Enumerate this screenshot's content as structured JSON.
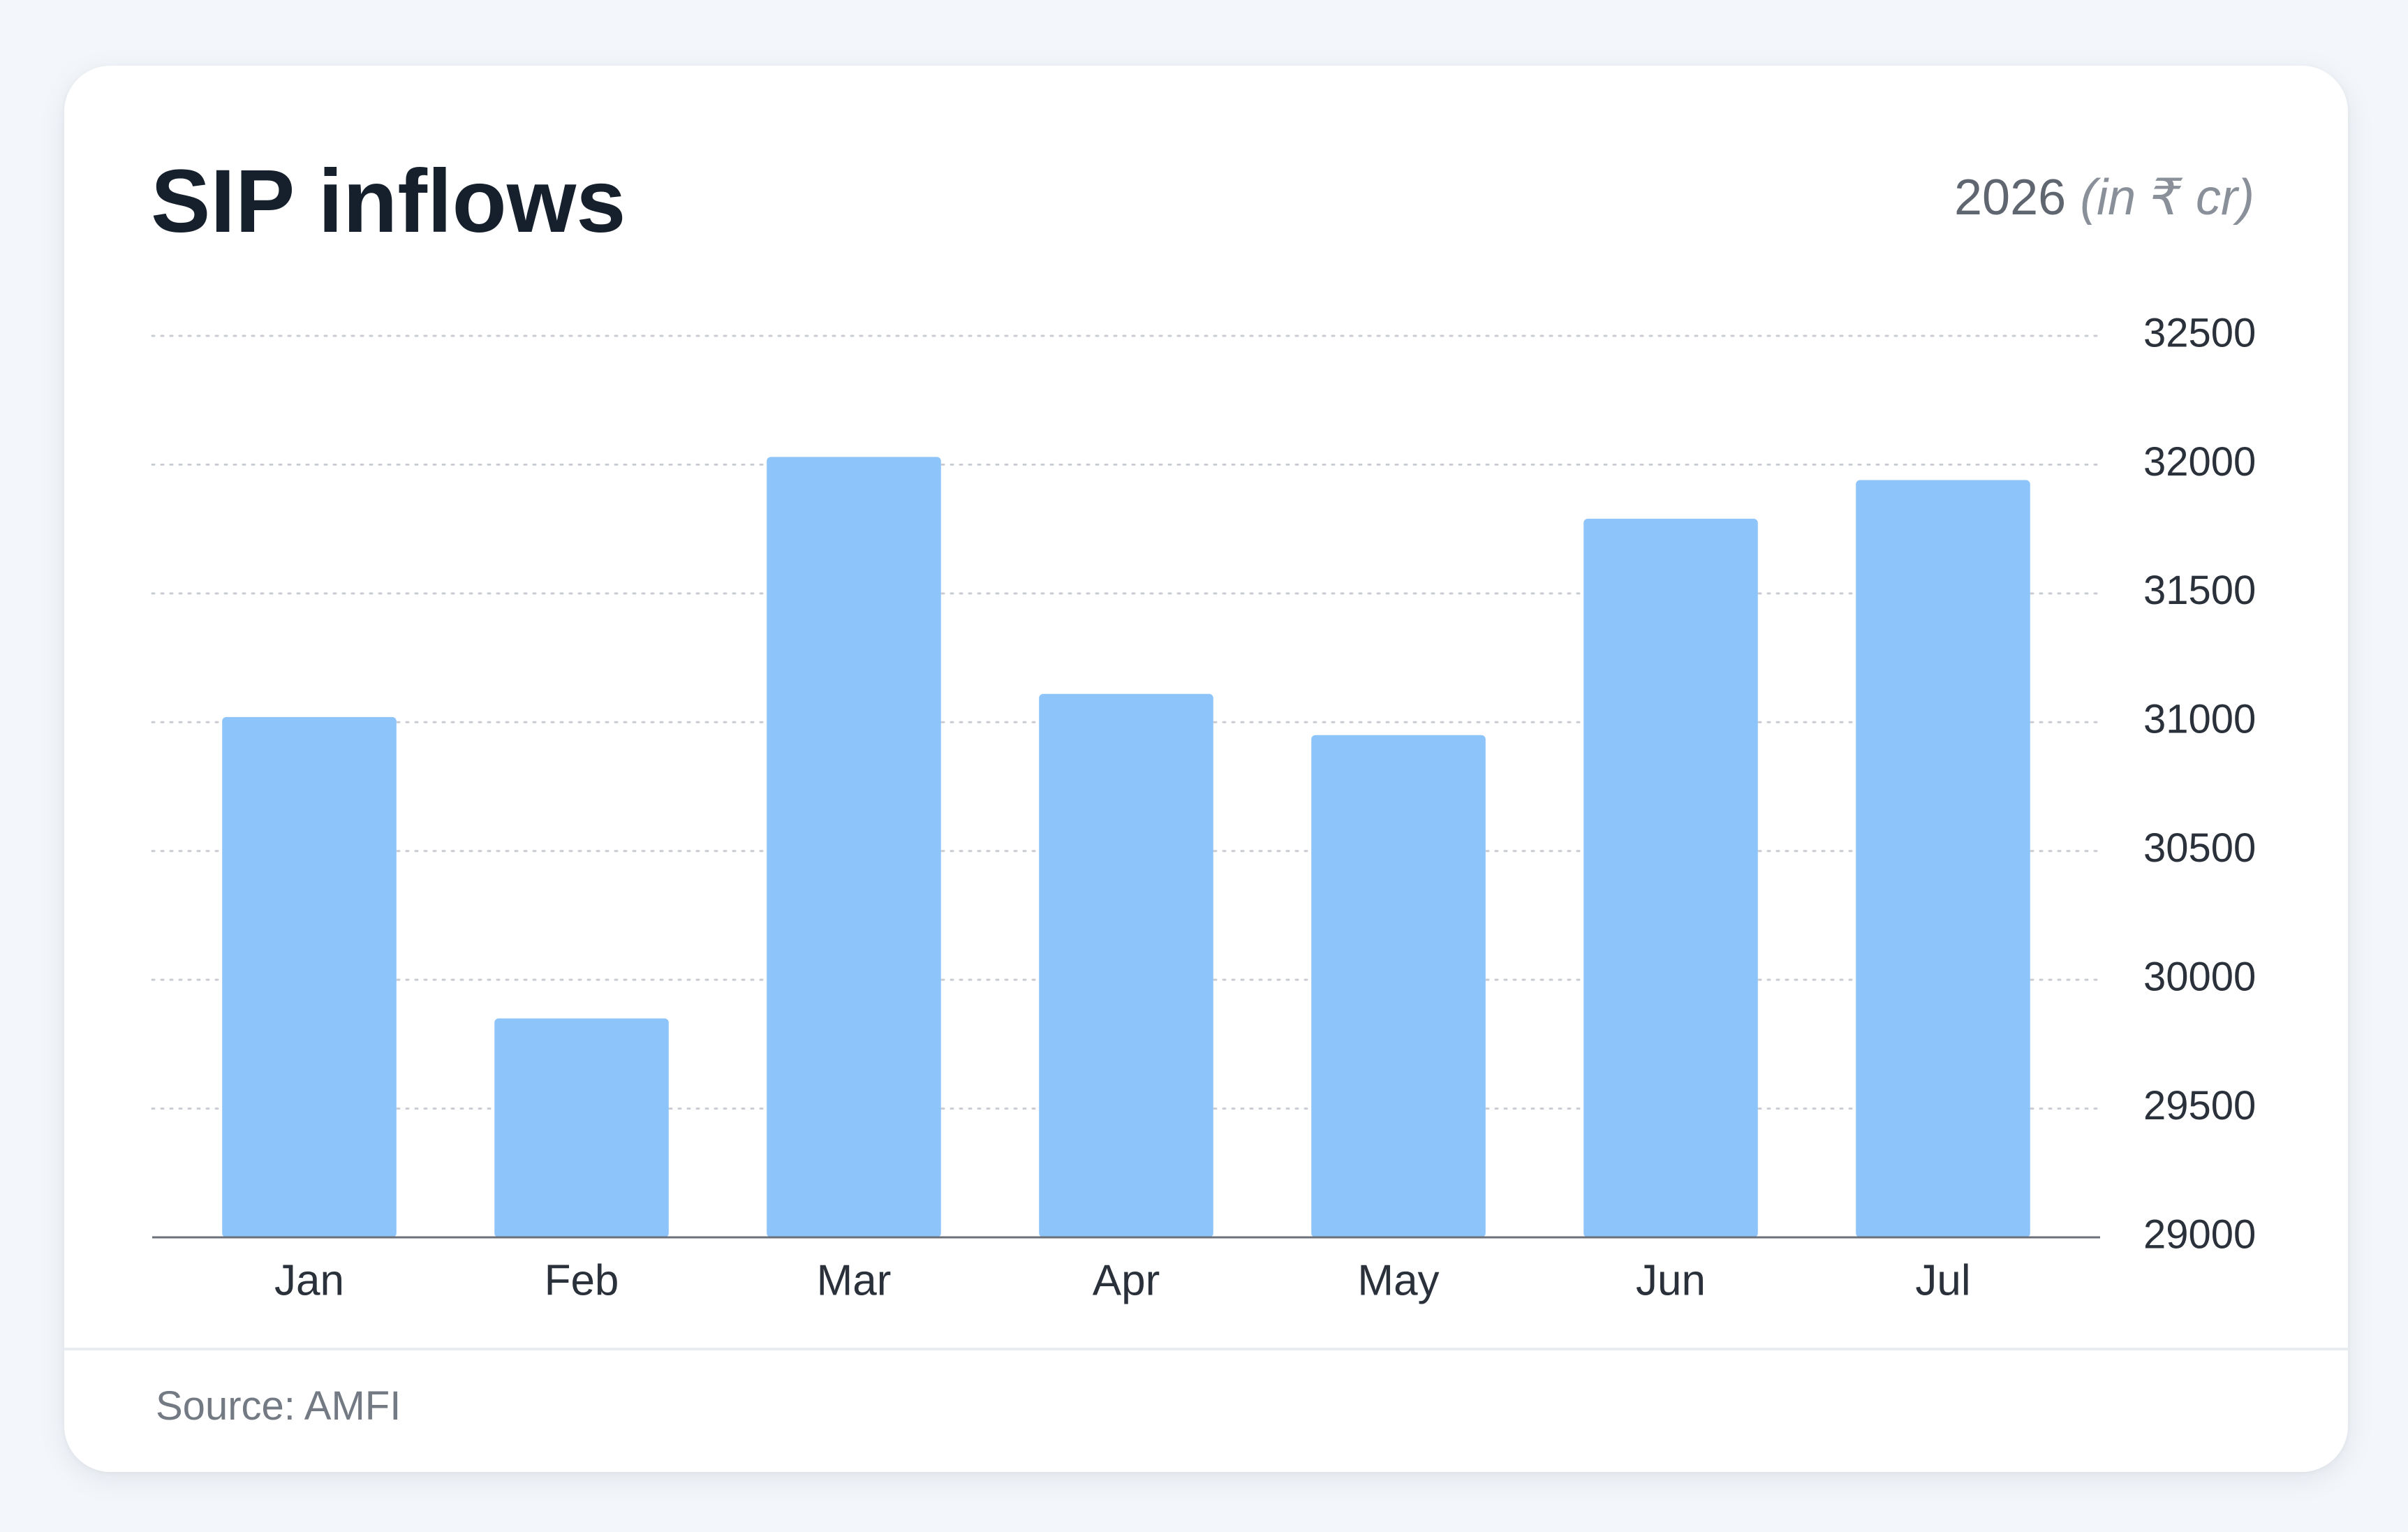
{
  "card": {
    "title": "SIP inflows",
    "year": "2026",
    "unit": "(in ₹ cr)",
    "source": "Source: AMFI"
  },
  "colors": {
    "bar": "#8dc5fa",
    "axis": "#6b7079",
    "grid": "#c9cdd3",
    "tick_text": "#2a313a"
  },
  "chart_data": {
    "type": "bar",
    "title": "SIP inflows",
    "subtitle": "2026 (in ₹ cr)",
    "categories": [
      "Jan",
      "Feb",
      "Mar",
      "Apr",
      "May",
      "Jun",
      "Jul"
    ],
    "values": [
      31020,
      29850,
      32030,
      31110,
      30950,
      31790,
      31940
    ],
    "ylim": [
      29000,
      32500
    ],
    "yticks": [
      29000,
      29500,
      30000,
      30500,
      31000,
      31500,
      32000,
      32500
    ],
    "y_axis_side": "right",
    "grid": "horizontal-dotted",
    "legend": "none"
  }
}
